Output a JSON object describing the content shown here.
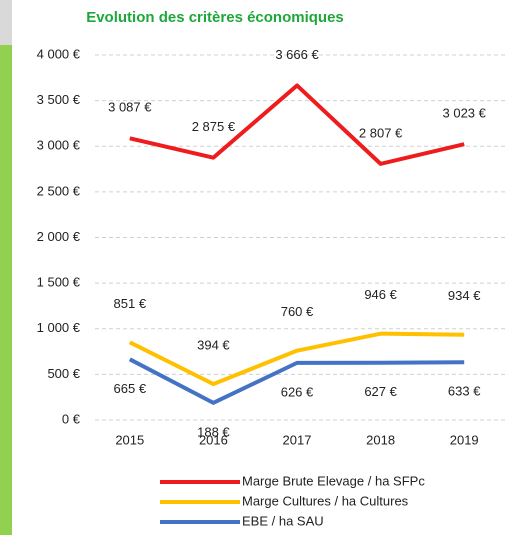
{
  "chart_data": {
    "type": "line",
    "title": "Evolution des critères économiques",
    "categories": [
      "2015",
      "2016",
      "2017",
      "2018",
      "2019"
    ],
    "series": [
      {
        "name": "Marge Brute Elevage / ha SFPc",
        "color": "#ee1c1c",
        "values": [
          3087,
          2875,
          3666,
          2807,
          3023
        ],
        "value_labels": [
          "3 087 €",
          "2 875 €",
          "3 666 €",
          "2 807 €",
          "3 023 €"
        ]
      },
      {
        "name": "Marge Cultures / ha Cultures",
        "color": "#ffc000",
        "values": [
          851,
          394,
          760,
          946,
          934
        ],
        "value_labels": [
          "851 €",
          "394 €",
          "760 €",
          "946 €",
          "934 €"
        ]
      },
      {
        "name": "EBE / ha SAU",
        "color": "#4472c4",
        "values": [
          665,
          188,
          626,
          627,
          633
        ],
        "value_labels": [
          "665 €",
          "188 €",
          "626 €",
          "627 €",
          "633 €"
        ]
      }
    ],
    "ylim": [
      0,
      4000
    ],
    "yticks": [
      {
        "value": 0,
        "label": "0 €"
      },
      {
        "value": 500,
        "label": "500 €"
      },
      {
        "value": 1000,
        "label": "1 000 €"
      },
      {
        "value": 1500,
        "label": "1 500 €"
      },
      {
        "value": 2000,
        "label": "2 000 €"
      },
      {
        "value": 2500,
        "label": "2 500 €"
      },
      {
        "value": 3000,
        "label": "3 000 €"
      },
      {
        "value": 3500,
        "label": "3 500 €"
      },
      {
        "value": 4000,
        "label": "4 000 €"
      }
    ],
    "grid": true
  }
}
